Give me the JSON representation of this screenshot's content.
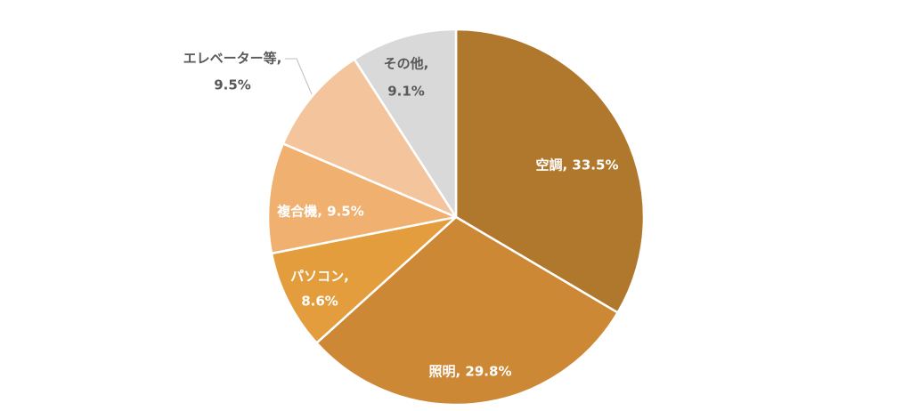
{
  "chart_data": {
    "type": "pie",
    "title": "",
    "legend": "none",
    "slices": [
      {
        "name": "空調",
        "value": 33.5,
        "pct": "33.5%",
        "color": "#B0782D"
      },
      {
        "name": "照明",
        "value": 29.8,
        "pct": "29.8%",
        "color": "#CC8834"
      },
      {
        "name": "パソコン",
        "value": 8.6,
        "pct": "8.6%",
        "color": "#E39D3C"
      },
      {
        "name": "複合機",
        "value": 9.5,
        "pct": "9.5%",
        "color": "#F0B06F"
      },
      {
        "name": "エレベーター等",
        "value": 9.5,
        "pct": "9.5%",
        "color": "#F4C59D"
      },
      {
        "name": "その他",
        "value": 9.1,
        "pct": "9.1%",
        "color": "#D9D9D9"
      }
    ]
  }
}
